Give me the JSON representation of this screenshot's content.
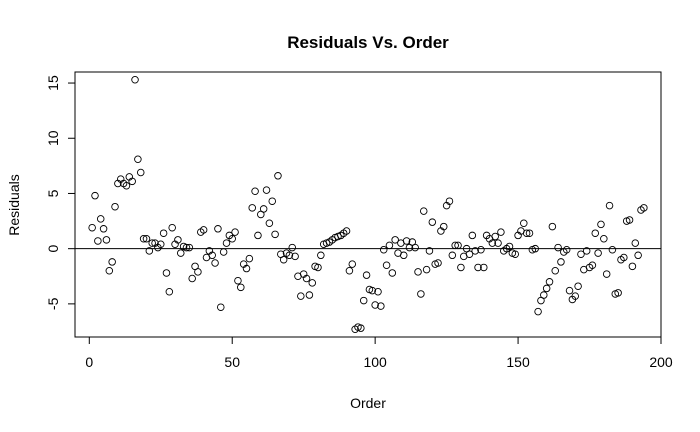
{
  "chart_data": {
    "type": "scatter",
    "title": "Residuals Vs. Order",
    "xlabel": "Order",
    "ylabel": "Residuals",
    "xlim": [
      -5,
      200
    ],
    "ylim": [
      -8,
      16
    ],
    "xticks": [
      0,
      50,
      100,
      150,
      200
    ],
    "yticks": [
      -5,
      0,
      5,
      10,
      15
    ],
    "xtick_labels": [
      "0",
      "50",
      "100",
      "150",
      "200"
    ],
    "ytick_labels": [
      "-5",
      "0",
      "5",
      "10",
      "15"
    ],
    "reference_line": 0,
    "grid": false,
    "point_style": "open-circle",
    "points": [
      [
        1,
        1.9
      ],
      [
        2,
        4.8
      ],
      [
        3,
        0.7
      ],
      [
        4,
        2.7
      ],
      [
        5,
        1.8
      ],
      [
        6,
        0.8
      ],
      [
        7,
        -2.0
      ],
      [
        8,
        -1.2
      ],
      [
        9,
        3.8
      ],
      [
        10,
        5.9
      ],
      [
        11,
        6.3
      ],
      [
        12,
        5.9
      ],
      [
        13,
        5.7
      ],
      [
        14,
        6.5
      ],
      [
        15,
        6.1
      ],
      [
        16,
        15.3
      ],
      [
        17,
        8.1
      ],
      [
        18,
        6.9
      ],
      [
        19,
        0.9
      ],
      [
        20,
        0.9
      ],
      [
        21,
        -0.2
      ],
      [
        22,
        0.5
      ],
      [
        23,
        0.5
      ],
      [
        24,
        0.1
      ],
      [
        25,
        0.4
      ],
      [
        26,
        1.4
      ],
      [
        27,
        -2.2
      ],
      [
        28,
        -3.9
      ],
      [
        29,
        1.9
      ],
      [
        30,
        0.4
      ],
      [
        31,
        0.8
      ],
      [
        32,
        -0.4
      ],
      [
        33,
        0.2
      ],
      [
        34,
        0.1
      ],
      [
        35,
        0.1
      ],
      [
        36,
        -2.7
      ],
      [
        37,
        -1.6
      ],
      [
        38,
        -2.1
      ],
      [
        39,
        1.5
      ],
      [
        40,
        1.7
      ],
      [
        41,
        -0.8
      ],
      [
        42,
        -0.2
      ],
      [
        43,
        -0.6
      ],
      [
        44,
        -1.3
      ],
      [
        45,
        1.8
      ],
      [
        46,
        -5.3
      ],
      [
        47,
        -0.3
      ],
      [
        48,
        0.5
      ],
      [
        49,
        1.2
      ],
      [
        50,
        0.9
      ],
      [
        51,
        1.5
      ],
      [
        52,
        -2.9
      ],
      [
        53,
        -3.5
      ],
      [
        54,
        -1.4
      ],
      [
        55,
        -1.8
      ],
      [
        56,
        -0.9
      ],
      [
        57,
        3.7
      ],
      [
        58,
        5.2
      ],
      [
        59,
        1.2
      ],
      [
        60,
        3.1
      ],
      [
        61,
        3.6
      ],
      [
        62,
        5.3
      ],
      [
        63,
        2.3
      ],
      [
        64,
        4.3
      ],
      [
        65,
        1.3
      ],
      [
        66,
        6.6
      ],
      [
        67,
        -0.5
      ],
      [
        68,
        -1.0
      ],
      [
        69,
        -0.4
      ],
      [
        70,
        -0.6
      ],
      [
        71,
        0.1
      ],
      [
        72,
        -0.7
      ],
      [
        73,
        -2.5
      ],
      [
        74,
        -4.3
      ],
      [
        75,
        -2.3
      ],
      [
        76,
        -2.7
      ],
      [
        77,
        -4.2
      ],
      [
        78,
        -3.1
      ],
      [
        79,
        -1.6
      ],
      [
        80,
        -1.7
      ],
      [
        81,
        -0.6
      ],
      [
        82,
        0.4
      ],
      [
        83,
        0.5
      ],
      [
        84,
        0.6
      ],
      [
        85,
        0.8
      ],
      [
        86,
        1.0
      ],
      [
        87,
        1.1
      ],
      [
        88,
        1.2
      ],
      [
        89,
        1.4
      ],
      [
        90,
        1.6
      ],
      [
        91,
        -2.0
      ],
      [
        92,
        -1.4
      ],
      [
        93,
        -7.3
      ],
      [
        94,
        -7.1
      ],
      [
        95,
        -7.2
      ],
      [
        96,
        -4.7
      ],
      [
        97,
        -2.4
      ],
      [
        98,
        -3.7
      ],
      [
        99,
        -3.8
      ],
      [
        100,
        -5.1
      ],
      [
        101,
        -3.9
      ],
      [
        102,
        -5.2
      ],
      [
        103,
        -0.1
      ],
      [
        104,
        -1.5
      ],
      [
        105,
        0.3
      ],
      [
        106,
        -2.2
      ],
      [
        107,
        0.8
      ],
      [
        108,
        -0.4
      ],
      [
        109,
        0.5
      ],
      [
        110,
        -0.6
      ],
      [
        111,
        0.7
      ],
      [
        112,
        0.1
      ],
      [
        113,
        0.6
      ],
      [
        114,
        0.1
      ],
      [
        115,
        -2.1
      ],
      [
        116,
        -4.1
      ],
      [
        117,
        3.4
      ],
      [
        118,
        -1.9
      ],
      [
        119,
        -0.2
      ],
      [
        120,
        2.4
      ],
      [
        121,
        -1.4
      ],
      [
        122,
        -1.3
      ],
      [
        123,
        1.6
      ],
      [
        124,
        2.0
      ],
      [
        125,
        3.9
      ],
      [
        126,
        4.3
      ],
      [
        127,
        -0.6
      ],
      [
        128,
        0.3
      ],
      [
        129,
        0.3
      ],
      [
        130,
        -1.7
      ],
      [
        131,
        -0.7
      ],
      [
        132,
        0.0
      ],
      [
        133,
        -0.5
      ],
      [
        134,
        1.2
      ],
      [
        135,
        -0.2
      ],
      [
        136,
        -1.7
      ],
      [
        137,
        -0.1
      ],
      [
        138,
        -1.7
      ],
      [
        139,
        1.2
      ],
      [
        140,
        0.9
      ],
      [
        141,
        0.5
      ],
      [
        142,
        1.1
      ],
      [
        143,
        0.5
      ],
      [
        144,
        1.5
      ],
      [
        145,
        -0.2
      ],
      [
        146,
        0.0
      ],
      [
        147,
        0.2
      ],
      [
        148,
        -0.4
      ],
      [
        149,
        -0.5
      ],
      [
        150,
        1.2
      ],
      [
        151,
        1.6
      ],
      [
        152,
        2.3
      ],
      [
        153,
        1.4
      ],
      [
        154,
        1.4
      ],
      [
        155,
        -0.1
      ],
      [
        156,
        0.0
      ],
      [
        157,
        -5.7
      ],
      [
        158,
        -4.7
      ],
      [
        159,
        -4.2
      ],
      [
        160,
        -3.6
      ],
      [
        161,
        -3.0
      ],
      [
        162,
        2.0
      ],
      [
        163,
        -2.0
      ],
      [
        164,
        0.1
      ],
      [
        165,
        -1.2
      ],
      [
        166,
        -0.3
      ],
      [
        167,
        -0.1
      ],
      [
        168,
        -3.8
      ],
      [
        169,
        -4.6
      ],
      [
        170,
        -4.3
      ],
      [
        171,
        -3.4
      ],
      [
        172,
        -0.5
      ],
      [
        173,
        -1.9
      ],
      [
        174,
        -0.2
      ],
      [
        175,
        -1.7
      ],
      [
        176,
        -1.5
      ],
      [
        177,
        1.4
      ],
      [
        178,
        -0.4
      ],
      [
        179,
        2.2
      ],
      [
        180,
        0.9
      ],
      [
        181,
        -2.3
      ],
      [
        182,
        3.9
      ],
      [
        183,
        -0.1
      ],
      [
        184,
        -4.1
      ],
      [
        185,
        -4.0
      ],
      [
        186,
        -1.0
      ],
      [
        187,
        -0.8
      ],
      [
        188,
        2.5
      ],
      [
        189,
        2.6
      ],
      [
        190,
        -1.6
      ],
      [
        191,
        0.5
      ],
      [
        192,
        -0.6
      ],
      [
        193,
        3.5
      ],
      [
        194,
        3.7
      ]
    ]
  }
}
